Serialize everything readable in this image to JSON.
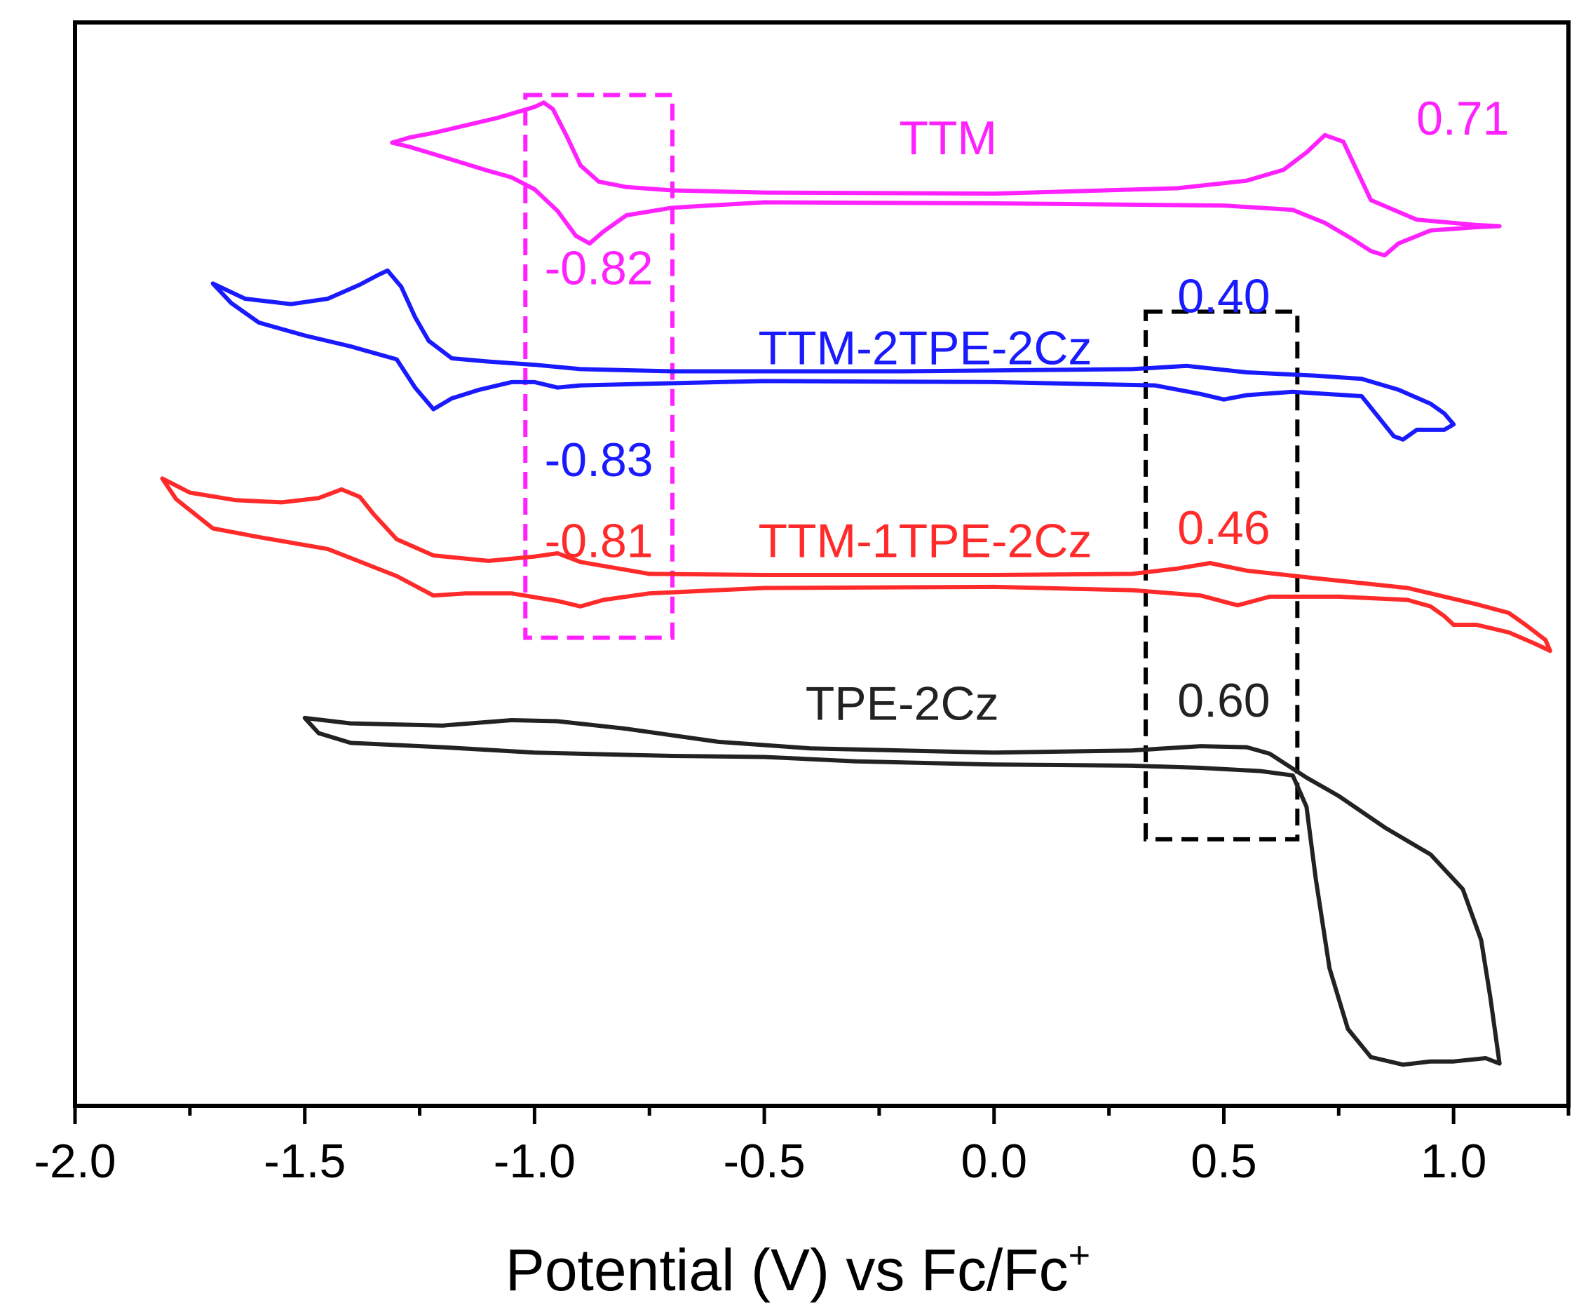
{
  "chart_data": {
    "type": "line",
    "title": "",
    "xlabel": "Potential (V) vs Fc/Fc",
    "xlabel_superscript": "+",
    "ylabel": "",
    "xlim": [
      -2.0,
      1.25
    ],
    "ylim": [
      0,
      100
    ],
    "x_ticks": [
      -2.0,
      -1.5,
      -1.0,
      -0.5,
      0.0,
      0.5,
      1.0
    ],
    "x_tick_labels": [
      "-2.0",
      "-1.5",
      "-1.0",
      "-0.5",
      "0.0",
      "0.5",
      "1.0"
    ],
    "x_minor_step": 0.25,
    "y_ticks_shown": false,
    "grid": false,
    "series": [
      {
        "name": "TTM",
        "color": "#ff22ff",
        "x": [
          -1.31,
          -1.27,
          -1.22,
          -1.15,
          -1.08,
          -1.04,
          -1.0,
          -0.98,
          -0.96,
          -0.93,
          -0.9,
          -0.86,
          -0.8,
          -0.7,
          -0.5,
          0.0,
          0.4,
          0.55,
          0.63,
          0.68,
          0.72,
          0.76,
          0.82,
          0.92,
          1.05,
          1.1,
          1.05,
          0.95,
          0.88,
          0.85,
          0.82,
          0.78,
          0.72,
          0.65,
          0.5,
          0.0,
          -0.5,
          -0.7,
          -0.8,
          -0.85,
          -0.88,
          -0.91,
          -0.95,
          -1.0,
          -1.05,
          -1.1,
          -1.2,
          -1.27,
          -1.31
        ],
        "y": [
          88.9,
          89.4,
          89.8,
          90.5,
          91.2,
          91.7,
          92.2,
          92.6,
          92.0,
          89.5,
          86.8,
          85.3,
          84.8,
          84.5,
          84.3,
          84.2,
          84.7,
          85.4,
          86.4,
          88.0,
          89.6,
          89.0,
          83.6,
          81.8,
          81.3,
          81.2,
          81.1,
          80.8,
          79.6,
          78.5,
          78.9,
          80.0,
          81.5,
          82.7,
          83.1,
          83.3,
          83.4,
          82.9,
          82.2,
          80.7,
          79.6,
          80.3,
          82.6,
          84.6,
          85.7,
          86.3,
          87.6,
          88.5,
          88.9
        ]
      },
      {
        "name": "TTM-2TPE-2Cz",
        "color": "#1a1aff",
        "x": [
          -1.7,
          -1.63,
          -1.53,
          -1.45,
          -1.38,
          -1.34,
          -1.32,
          -1.29,
          -1.26,
          -1.23,
          -1.18,
          -1.1,
          -1.0,
          -0.9,
          -0.7,
          -0.2,
          0.3,
          0.42,
          0.55,
          0.7,
          0.8,
          0.88,
          0.95,
          0.98,
          1.0,
          0.98,
          0.94,
          0.92,
          0.89,
          0.87,
          0.8,
          0.65,
          0.55,
          0.5,
          0.45,
          0.35,
          0.0,
          -0.5,
          -0.9,
          -0.95,
          -1.0,
          -1.05,
          -1.12,
          -1.18,
          -1.22,
          -1.26,
          -1.3,
          -1.4,
          -1.5,
          -1.6,
          -1.66,
          -1.7
        ],
        "y": [
          75.9,
          74.5,
          74.0,
          74.5,
          75.8,
          76.7,
          77.1,
          75.6,
          72.8,
          70.6,
          69.0,
          68.7,
          68.4,
          68.0,
          67.8,
          67.8,
          68.0,
          68.3,
          67.7,
          67.4,
          67.1,
          66.1,
          64.8,
          63.9,
          62.9,
          62.4,
          62.4,
          62.4,
          61.5,
          61.8,
          65.5,
          65.9,
          65.6,
          65.2,
          65.7,
          66.5,
          66.8,
          66.9,
          66.5,
          66.3,
          66.8,
          66.8,
          66.1,
          65.3,
          64.3,
          66.3,
          68.9,
          70.1,
          71.1,
          72.3,
          74.1,
          75.9
        ]
      },
      {
        "name": "TTM-1TPE-2Cz",
        "color": "#ff2a2a",
        "x": [
          -1.81,
          -1.75,
          -1.65,
          -1.55,
          -1.47,
          -1.42,
          -1.38,
          -1.35,
          -1.3,
          -1.22,
          -1.1,
          -1.0,
          -0.95,
          -0.9,
          -0.75,
          -0.5,
          0.0,
          0.3,
          0.4,
          0.47,
          0.55,
          0.7,
          0.9,
          1.05,
          1.12,
          1.16,
          1.2,
          1.21,
          1.18,
          1.12,
          1.05,
          1.0,
          0.98,
          0.95,
          0.9,
          0.75,
          0.6,
          0.53,
          0.45,
          0.3,
          0.0,
          -0.5,
          -0.75,
          -0.85,
          -0.9,
          -0.95,
          -1.05,
          -1.15,
          -1.22,
          -1.3,
          -1.45,
          -1.6,
          -1.7,
          -1.78,
          -1.81
        ],
        "y": [
          57.9,
          56.6,
          55.9,
          55.7,
          56.1,
          56.9,
          56.2,
          54.6,
          52.3,
          50.8,
          50.3,
          50.7,
          51.0,
          50.2,
          49.1,
          49.0,
          49.0,
          49.1,
          49.6,
          50.1,
          49.4,
          48.7,
          47.8,
          46.3,
          45.5,
          44.3,
          43.0,
          42.0,
          42.6,
          43.7,
          44.4,
          44.4,
          45.2,
          46.1,
          46.7,
          47.0,
          47.0,
          46.2,
          47.1,
          47.6,
          47.9,
          47.8,
          47.3,
          46.7,
          46.1,
          46.6,
          47.3,
          47.3,
          47.1,
          48.9,
          51.4,
          52.5,
          53.3,
          56.0,
          57.9
        ]
      },
      {
        "name": "TPE-2Cz",
        "color": "#222222",
        "x": [
          -1.5,
          -1.4,
          -1.2,
          -1.05,
          -0.95,
          -0.8,
          -0.6,
          -0.4,
          0.0,
          0.3,
          0.45,
          0.55,
          0.6,
          0.64,
          0.68,
          0.75,
          0.85,
          0.95,
          1.02,
          1.06,
          1.08,
          1.1,
          1.07,
          1.0,
          0.95,
          0.89,
          0.82,
          0.77,
          0.73,
          0.7,
          0.68,
          0.65,
          0.58,
          0.45,
          0.3,
          0.0,
          -0.3,
          -0.5,
          -0.7,
          -1.0,
          -1.2,
          -1.4,
          -1.47,
          -1.5
        ],
        "y": [
          35.8,
          35.3,
          35.1,
          35.6,
          35.5,
          34.8,
          33.6,
          33.0,
          32.6,
          32.8,
          33.2,
          33.1,
          32.5,
          31.4,
          30.3,
          28.6,
          25.7,
          23.2,
          20.0,
          15.3,
          10.0,
          3.9,
          4.4,
          4.1,
          4.1,
          3.8,
          4.5,
          7.1,
          12.7,
          21.0,
          27.6,
          30.5,
          30.9,
          31.2,
          31.4,
          31.5,
          31.8,
          32.2,
          32.3,
          32.6,
          33.1,
          33.5,
          34.4,
          35.8
        ]
      }
    ],
    "annotations": [
      {
        "text": "TTM",
        "color": "#ff22ff",
        "x": -0.1,
        "y": 89.0
      },
      {
        "text": "0.71",
        "color": "#ff22ff",
        "x": 1.02,
        "y": 90.8
      },
      {
        "text": "-0.82",
        "color": "#ff22ff",
        "x": -0.86,
        "y": 77.0
      },
      {
        "text": "0.40",
        "color": "#1a1aff",
        "x": 0.5,
        "y": 74.4
      },
      {
        "text": "TTM-2TPE-2Cz",
        "color": "#1a1aff",
        "x": -0.15,
        "y": 69.6
      },
      {
        "text": "-0.83",
        "color": "#1a1aff",
        "x": -0.86,
        "y": 59.3
      },
      {
        "text": "-0.81",
        "color": "#ff2a2a",
        "x": -0.86,
        "y": 51.8
      },
      {
        "text": "TTM-1TPE-2Cz",
        "color": "#ff2a2a",
        "x": -0.15,
        "y": 51.8
      },
      {
        "text": "0.46",
        "color": "#ff2a2a",
        "x": 0.5,
        "y": 53.0
      },
      {
        "text": "TPE-2Cz",
        "color": "#222222",
        "x": -0.2,
        "y": 36.8
      },
      {
        "text": "0.60",
        "color": "#222222",
        "x": 0.5,
        "y": 37.1
      }
    ],
    "highlight_boxes": [
      {
        "color": "#ff22ff",
        "x": [
          -1.02,
          -0.7
        ],
        "y": [
          43.2,
          93.3
        ]
      },
      {
        "color": "#000000",
        "x": [
          0.33,
          0.66
        ],
        "y": [
          24.6,
          73.3
        ]
      }
    ]
  }
}
